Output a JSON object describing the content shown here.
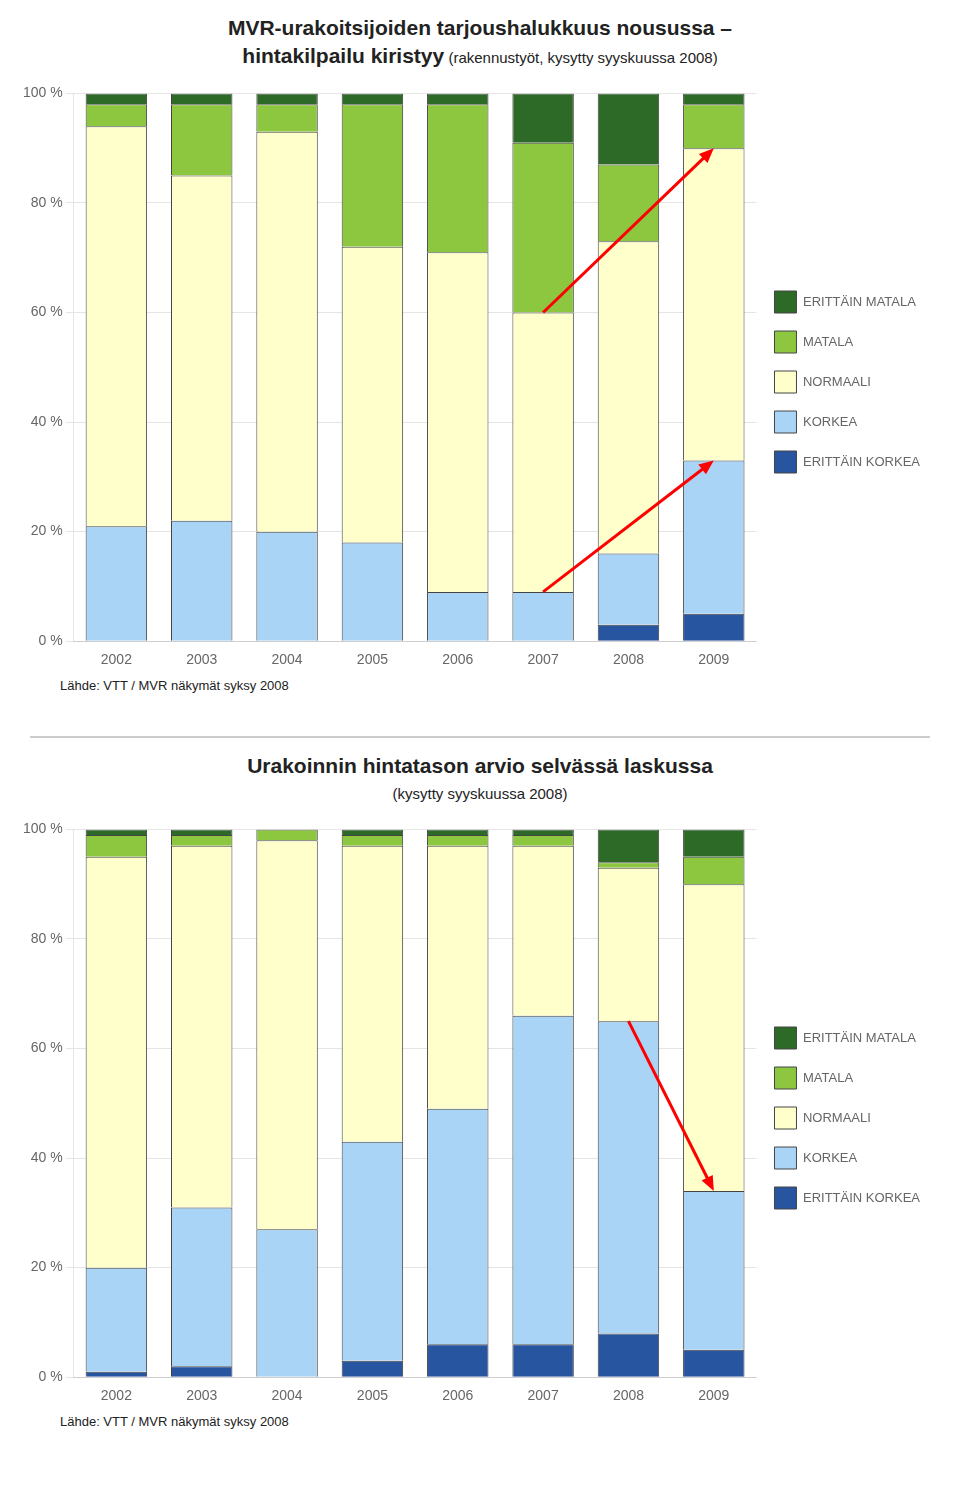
{
  "chart_data": [
    {
      "type": "bar",
      "stacked": true,
      "grid": true,
      "legend": "right",
      "title": [
        "MVR-urakoitsijoiden tarjoushalukkuus nousussa –",
        "hintakilpailu kiristyy"
      ],
      "subtitle": "(rakennustyöt, kysytty syyskuussa 2008)",
      "source": "Lähde: VTT / MVR näkymät syksy 2008",
      "categories": [
        "2002",
        "2003",
        "2004",
        "2005",
        "2006",
        "2007",
        "2008",
        "2009"
      ],
      "series": [
        {
          "name": "ERITTÄIN KORKEA",
          "color": "#2855a0",
          "values": [
            0,
            0,
            0,
            0,
            0,
            0,
            3,
            5
          ]
        },
        {
          "name": "KORKEA",
          "color": "#aad4f5",
          "values": [
            21,
            22,
            20,
            18,
            9,
            9,
            13,
            28
          ]
        },
        {
          "name": "NORMAALI",
          "color": "#ffffcc",
          "values": [
            73,
            63,
            73,
            54,
            62,
            51,
            57,
            57
          ]
        },
        {
          "name": "MATALA",
          "color": "#8dc63f",
          "values": [
            4,
            13,
            5,
            26,
            27,
            31,
            14,
            8
          ]
        },
        {
          "name": "ERITTÄIN MATALA",
          "color": "#2d6a27",
          "values": [
            2,
            2,
            2,
            2,
            2,
            9,
            13,
            2
          ]
        }
      ],
      "ylim": [
        0,
        100
      ],
      "yticks": [
        {
          "value": 0,
          "label": "0 %"
        },
        {
          "value": 20,
          "label": "20 %"
        },
        {
          "value": 40,
          "label": "40 %"
        },
        {
          "value": 60,
          "label": "60 %"
        },
        {
          "value": 80,
          "label": "80 %"
        },
        {
          "value": 100,
          "label": "100 %"
        }
      ],
      "arrows": [
        {
          "x_from": "2007",
          "y_from": 9,
          "x_to": "2009",
          "y_to": 33,
          "color": "red"
        },
        {
          "x_from": "2007",
          "y_from": 60,
          "x_to": "2009",
          "y_to": 90,
          "color": "red"
        }
      ]
    },
    {
      "type": "bar",
      "stacked": true,
      "grid": true,
      "legend": "right",
      "title": [
        "Urakoinnin hintatason arvio selvässä laskussa"
      ],
      "subtitle": "(kysytty syyskuussa 2008)",
      "source": "Lähde: VTT / MVR näkymät syksy 2008",
      "categories": [
        "2002",
        "2003",
        "2004",
        "2005",
        "2006",
        "2007",
        "2008",
        "2009"
      ],
      "series": [
        {
          "name": "ERITTÄIN KORKEA",
          "color": "#2855a0",
          "values": [
            1,
            2,
            0,
            3,
            6,
            6,
            8,
            5
          ]
        },
        {
          "name": "KORKEA",
          "color": "#aad4f5",
          "values": [
            19,
            29,
            27,
            40,
            43,
            60,
            57,
            29
          ]
        },
        {
          "name": "NORMAALI",
          "color": "#ffffcc",
          "values": [
            75,
            66,
            71,
            54,
            48,
            31,
            28,
            56
          ]
        },
        {
          "name": "MATALA",
          "color": "#8dc63f",
          "values": [
            4,
            2,
            2,
            2,
            2,
            2,
            1,
            5
          ]
        },
        {
          "name": "ERITTÄIN MATALA",
          "color": "#2d6a27",
          "values": [
            1,
            1,
            0,
            1,
            1,
            1,
            6,
            5
          ]
        }
      ],
      "ylim": [
        0,
        100
      ],
      "yticks": [
        {
          "value": 0,
          "label": "0 %"
        },
        {
          "value": 20,
          "label": "20 %"
        },
        {
          "value": 40,
          "label": "40 %"
        },
        {
          "value": 60,
          "label": "60 %"
        },
        {
          "value": 80,
          "label": "80 %"
        },
        {
          "value": 100,
          "label": "100 %"
        }
      ],
      "arrows": [
        {
          "x_from": "2008",
          "y_from": 65,
          "x_to": "2009",
          "y_to": 34,
          "color": "red"
        }
      ]
    }
  ]
}
